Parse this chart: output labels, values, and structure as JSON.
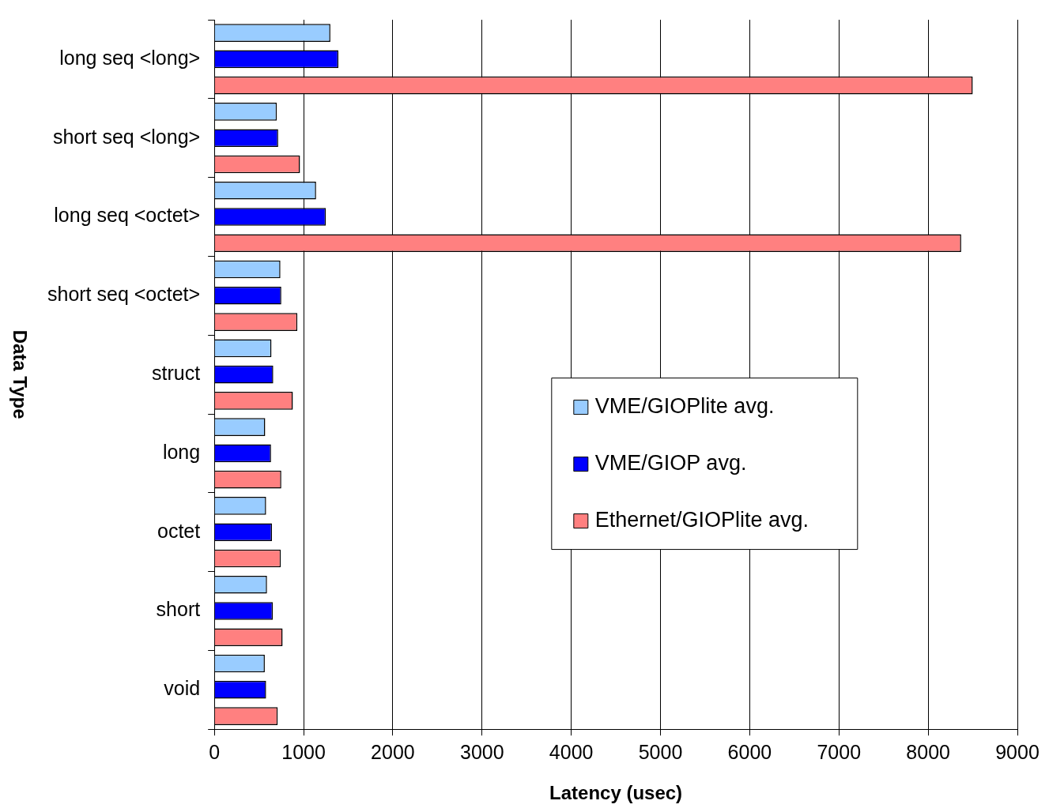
{
  "chart_data": {
    "type": "bar",
    "orientation": "horizontal",
    "xlabel": "Latency (usec)",
    "ylabel": "Data Type",
    "categories": [
      "long seq <long>",
      "short seq <long>",
      "long seq <octet>",
      "short seq <octet>",
      "struct",
      "long",
      "octet",
      "short",
      "void"
    ],
    "series": [
      {
        "name": "VME/GIOPlite avg.",
        "color": "#99ccff",
        "values": [
          1300,
          700,
          1140,
          740,
          640,
          570,
          580,
          590,
          565
        ]
      },
      {
        "name": "VME/GIOP avg.",
        "color": "#0000ff",
        "values": [
          1390,
          715,
          1250,
          750,
          660,
          635,
          645,
          655,
          580
        ]
      },
      {
        "name": "Ethernet/GIOPlite avg.",
        "color": "#ff8080",
        "values": [
          8500,
          960,
          8370,
          930,
          880,
          750,
          745,
          765,
          710
        ]
      }
    ],
    "xlim": [
      0,
      9000
    ],
    "xticks": [
      0,
      1000,
      2000,
      3000,
      4000,
      5000,
      6000,
      7000,
      8000,
      9000
    ],
    "grid": "x",
    "legend": "right"
  }
}
